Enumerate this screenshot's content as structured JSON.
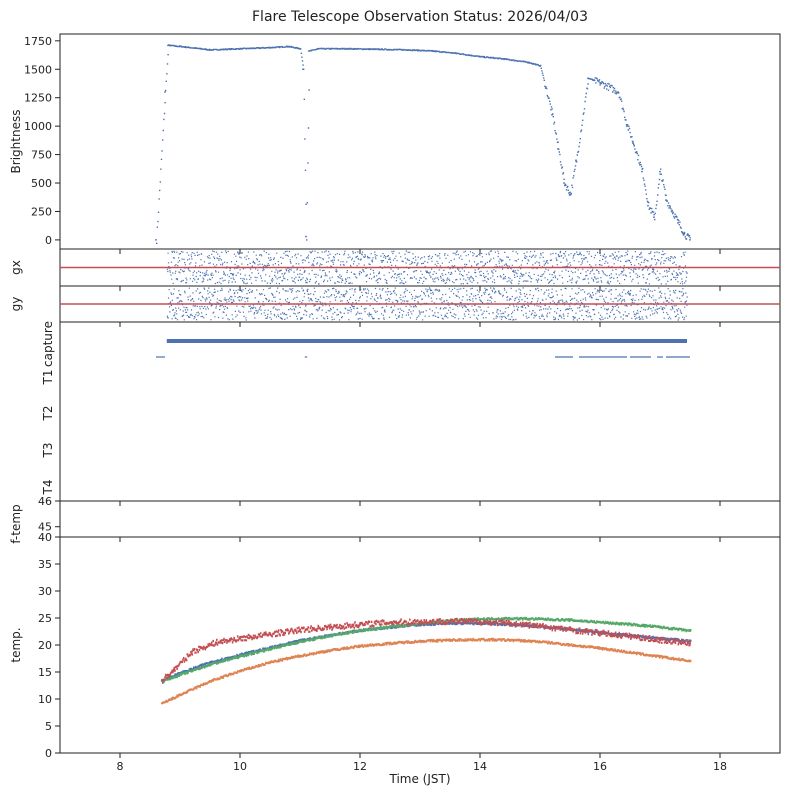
{
  "chart_data": {
    "type": "scatter",
    "title": "Flare Telescope Observation Status: 2026/04/03",
    "xlabel": "Time (JST)",
    "xlim": [
      7,
      19
    ],
    "xticks": [
      8,
      10,
      12,
      14,
      16,
      18
    ],
    "colors": {
      "blue": "#4c72b0",
      "orange": "#dd8452",
      "green": "#55a868",
      "red": "#c44e52"
    },
    "panels": {
      "brightness": {
        "ylabel": "Brightness",
        "ylim": [
          -80,
          1810
        ],
        "yticks": [
          0,
          250,
          500,
          750,
          1000,
          1250,
          1500,
          1750
        ],
        "series": [
          {
            "name": "brightness",
            "color": "#4c72b0",
            "x": [
              8.6,
              8.75,
              8.8,
              9.0,
              9.5,
              10.0,
              10.5,
              10.8,
              11.0,
              11.05,
              11.1,
              11.15,
              11.3,
              11.8,
              12.3,
              12.8,
              13.2,
              13.6,
              14.0,
              14.4,
              14.8,
              15.0,
              15.2,
              15.3,
              15.4,
              15.5,
              15.6,
              15.8,
              16.0,
              16.3,
              16.45,
              16.55,
              16.7,
              16.8,
              16.9,
              17.0,
              17.1,
              17.2,
              17.3,
              17.4,
              17.5
            ],
            "y": [
              0,
              1300,
              1710,
              1700,
              1670,
              1680,
              1690,
              1700,
              1680,
              1500,
              30,
              1660,
              1680,
              1680,
              1675,
              1670,
              1660,
              1640,
              1610,
              1590,
              1560,
              1530,
              1100,
              800,
              500,
              400,
              700,
              1420,
              1380,
              1300,
              1000,
              850,
              600,
              300,
              200,
              600,
              350,
              250,
              150,
              50,
              0
            ]
          }
        ]
      },
      "gx": {
        "ylabel": "gx",
        "ref_line": 0,
        "ref_color": "#c44e52"
      },
      "gy": {
        "ylabel": "gy",
        "ref_line": 0,
        "ref_color": "#c44e52"
      },
      "capture": {
        "ylabel": "capture",
        "rows": [
          "capture",
          "T1",
          "T2",
          "T3",
          "T4"
        ],
        "segments": [
          {
            "row": "capture",
            "start": 8.78,
            "end": 16.9
          },
          {
            "row": "capture",
            "start": 16.9,
            "end": 17.45
          },
          {
            "row": "T1",
            "start": 8.6,
            "end": 8.75
          },
          {
            "row": "T1",
            "start": 11.08,
            "end": 11.12
          },
          {
            "row": "T1",
            "start": 15.25,
            "end": 15.55
          },
          {
            "row": "T1",
            "start": 15.65,
            "end": 16.45
          },
          {
            "row": "T1",
            "start": 16.5,
            "end": 16.85
          },
          {
            "row": "T1",
            "start": 16.95,
            "end": 17.05
          },
          {
            "row": "T1",
            "start": 17.1,
            "end": 17.5
          }
        ]
      },
      "ftemp": {
        "ylabel": "f-temp",
        "ylim": [
          44.6,
          46
        ],
        "yticks": [
          45,
          46
        ]
      },
      "temp": {
        "ylabel": "temp.",
        "ylim": [
          0,
          40
        ],
        "yticks": [
          0,
          5,
          10,
          15,
          20,
          25,
          30,
          35,
          40
        ],
        "series": [
          {
            "name": "blue",
            "color": "#4c72b0",
            "x": [
              8.7,
              9.0,
              9.5,
              10.0,
              10.5,
              11.0,
              11.5,
              12.0,
              12.5,
              13.0,
              13.5,
              14.0,
              14.5,
              15.0,
              15.5,
              16.0,
              16.5,
              17.0,
              17.5
            ],
            "y": [
              13.5,
              14.8,
              16.8,
              18.2,
              19.5,
              20.8,
              21.8,
              22.7,
              23.3,
              23.8,
              24.0,
              24.0,
              23.8,
              23.4,
              22.9,
              22.3,
              21.7,
              21.2,
              20.7
            ]
          },
          {
            "name": "green",
            "color": "#55a868",
            "x": [
              8.7,
              9.0,
              9.5,
              10.0,
              10.5,
              11.0,
              11.5,
              12.0,
              12.5,
              13.0,
              13.5,
              14.0,
              14.5,
              15.0,
              15.5,
              16.0,
              16.5,
              17.0,
              17.5
            ],
            "y": [
              13.3,
              14.5,
              16.4,
              17.9,
              19.3,
              20.6,
              21.7,
              22.7,
              23.4,
              24.0,
              24.5,
              24.8,
              24.9,
              24.8,
              24.6,
              24.2,
              23.8,
              23.3,
              22.6
            ]
          },
          {
            "name": "orange",
            "color": "#dd8452",
            "x": [
              8.7,
              9.0,
              9.5,
              10.0,
              10.5,
              11.0,
              11.5,
              12.0,
              12.5,
              13.0,
              13.5,
              14.0,
              14.5,
              15.0,
              15.5,
              16.0,
              16.5,
              17.0,
              17.5
            ],
            "y": [
              9.2,
              10.8,
              13.3,
              15.2,
              16.8,
              18.0,
              19.0,
              19.8,
              20.3,
              20.7,
              20.9,
              21.0,
              20.9,
              20.6,
              20.0,
              19.4,
              18.6,
              17.8,
              17.0
            ]
          },
          {
            "name": "red",
            "color": "#c44e52",
            "x": [
              8.7,
              8.9,
              9.2,
              9.6,
              10.0,
              10.5,
              11.0,
              11.5,
              12.0,
              12.5,
              13.0,
              13.5,
              14.0,
              14.5,
              15.0,
              15.5,
              16.0,
              16.5,
              17.0,
              17.5
            ],
            "y": [
              13.5,
              15.5,
              18.8,
              20.5,
              21.2,
              22.0,
              22.8,
              23.3,
              23.8,
              24.2,
              24.3,
              24.4,
              24.3,
              24.0,
              23.5,
              22.8,
              22.2,
              21.6,
              20.9,
              20.3
            ]
          }
        ]
      }
    }
  }
}
